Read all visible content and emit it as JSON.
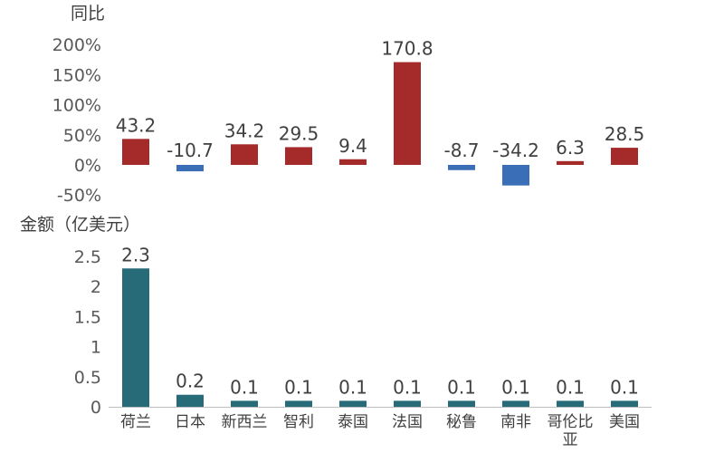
{
  "chart_data": [
    {
      "type": "bar",
      "ylabel": "同比",
      "categories": [
        "荷兰",
        "日本",
        "新西兰",
        "智利",
        "泰国",
        "法国",
        "秘鲁",
        "南非",
        "哥伦比亚",
        "美国"
      ],
      "values": [
        43.2,
        -10.7,
        34.2,
        29.5,
        9.4,
        170.8,
        -8.7,
        -34.2,
        6.3,
        28.5
      ],
      "data_labels": [
        "43.2",
        "-10.7",
        "34.2",
        "29.5",
        "9.4",
        "170.8",
        "-8.7",
        "-34.2",
        "6.3",
        "28.5"
      ],
      "ylim": [
        -50,
        200
      ],
      "yticks": [
        200,
        150,
        100,
        50,
        0,
        -50
      ],
      "ytick_labels": [
        "200%",
        "150%",
        "100%",
        "50%",
        "0%",
        "-50%"
      ],
      "colors": {
        "positive": "#a52a2a",
        "negative": "#3a6fb7"
      },
      "grid": false
    },
    {
      "type": "bar",
      "ylabel": "金额（亿美元）",
      "categories": [
        "荷兰",
        "日本",
        "新西兰",
        "智利",
        "泰国",
        "法国",
        "秘鲁",
        "南非",
        "哥伦比亚",
        "美国"
      ],
      "category_labels": [
        [
          "荷兰"
        ],
        [
          "日本"
        ],
        [
          "新西兰"
        ],
        [
          "智利"
        ],
        [
          "泰国"
        ],
        [
          "法国"
        ],
        [
          "秘鲁"
        ],
        [
          "南非"
        ],
        [
          "哥伦比",
          "亚"
        ],
        [
          "美国"
        ]
      ],
      "values": [
        2.3,
        0.2,
        0.1,
        0.1,
        0.1,
        0.1,
        0.1,
        0.1,
        0.1,
        0.1
      ],
      "data_labels": [
        "2.3",
        "0.2",
        "0.1",
        "0.1",
        "0.1",
        "0.1",
        "0.1",
        "0.1",
        "0.1",
        "0.1"
      ],
      "ylim": [
        0,
        2.5
      ],
      "yticks": [
        2.5,
        2,
        1.5,
        1,
        0.5,
        0
      ],
      "ytick_labels": [
        "2.5",
        "2",
        "1.5",
        "1",
        "0.5",
        "0"
      ],
      "colors": {
        "bar": "#276a78"
      },
      "grid": false
    }
  ]
}
